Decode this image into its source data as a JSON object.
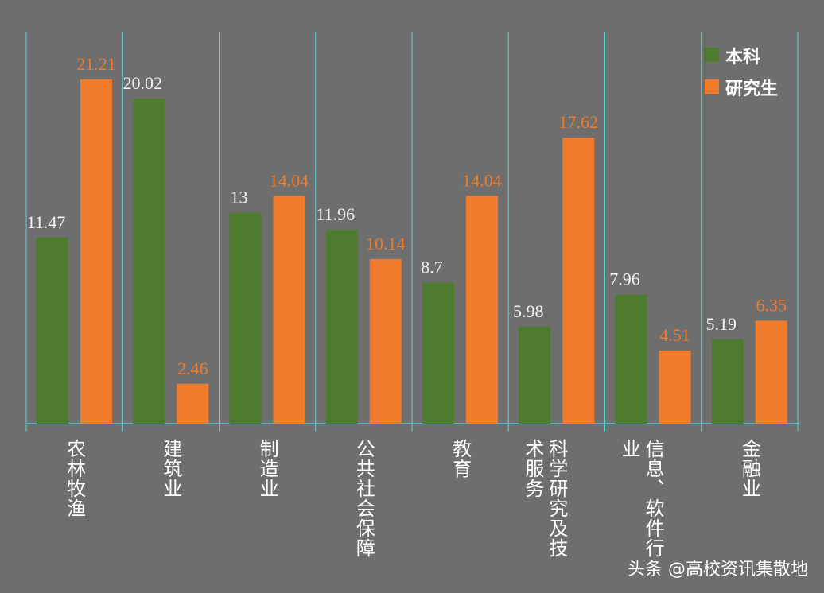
{
  "chart_data": {
    "type": "bar",
    "categories": [
      "农林牧渔",
      "建筑业",
      "制造业",
      "公共社会保障",
      "教育",
      "科学研究及技术服务",
      "信息、软件行业",
      "金融业"
    ],
    "series": [
      {
        "name": "本科",
        "color": "#4f7b2f",
        "values": [
          11.47,
          20.02,
          13,
          11.96,
          8.7,
          5.98,
          7.96,
          5.19
        ]
      },
      {
        "name": "研究生",
        "color": "#f07b2c",
        "values": [
          21.21,
          2.46,
          14.04,
          10.14,
          14.04,
          17.62,
          4.51,
          6.35
        ]
      }
    ],
    "ylim": [
      0,
      25
    ],
    "legend": "top-right",
    "watermark": "头条 @高校资讯集散地"
  }
}
